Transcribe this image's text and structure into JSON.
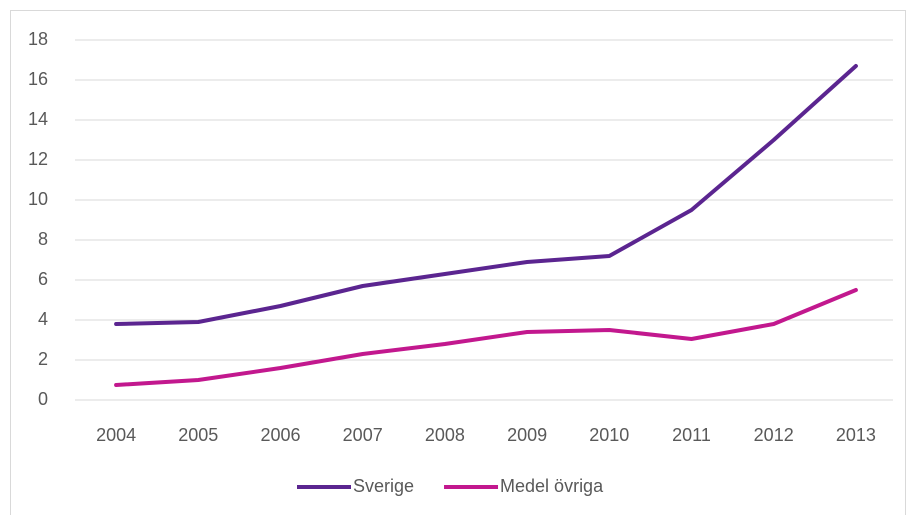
{
  "chart_data": {
    "type": "line",
    "categories": [
      "2004",
      "2005",
      "2006",
      "2007",
      "2008",
      "2009",
      "2010",
      "2011",
      "2012",
      "2013"
    ],
    "series": [
      {
        "name": "Sverige",
        "color": "#5b2590",
        "values": [
          3.8,
          3.9,
          4.7,
          5.7,
          6.3,
          6.9,
          7.2,
          9.5,
          13,
          16.7
        ]
      },
      {
        "name": "Medel övriga",
        "color": "#c2188e",
        "values": [
          0.75,
          1.0,
          1.6,
          2.3,
          2.8,
          3.4,
          3.5,
          3.05,
          3.8,
          5.5
        ]
      }
    ],
    "ylim": [
      0,
      18
    ],
    "yticks": [
      0,
      2,
      4,
      6,
      8,
      10,
      12,
      14,
      16,
      18
    ],
    "grid": true,
    "legend": "bottom"
  }
}
